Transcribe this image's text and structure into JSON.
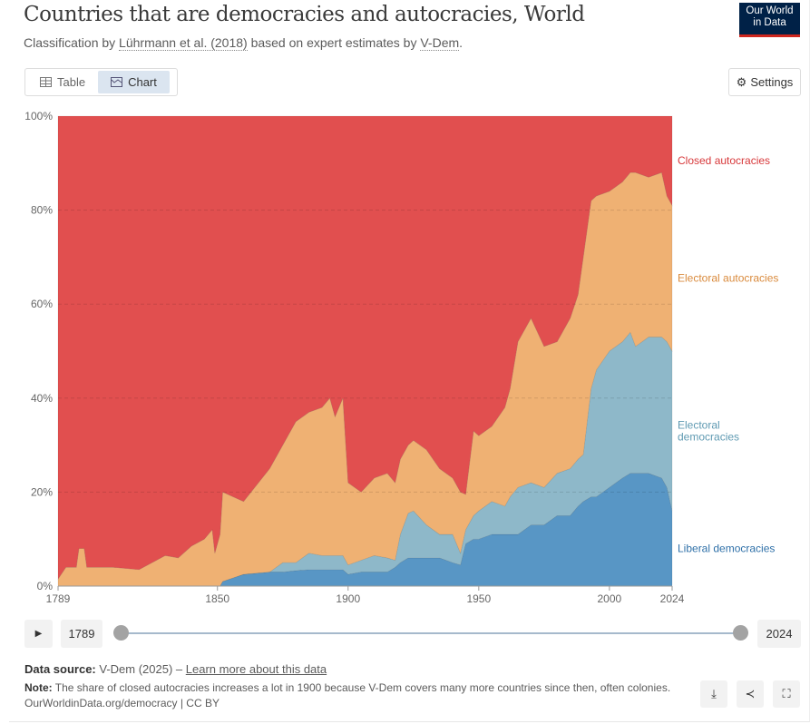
{
  "header": {
    "title": "Countries that are democracies and autocracies, World",
    "subtitle_pre": "Classification by ",
    "subtitle_link1": "Lührmann et al. (2018)",
    "subtitle_mid": " based on expert estimates by ",
    "subtitle_link2": "V-Dem",
    "subtitle_post": ".",
    "logo_line1": "Our World",
    "logo_line2": "in Data"
  },
  "tabs": {
    "table": "Table",
    "chart": "Chart"
  },
  "settings_label": "Settings",
  "timeline": {
    "start": "1789",
    "end": "2024"
  },
  "footer": {
    "source_label": "Data source:",
    "source_text": " V-Dem (2025) – ",
    "source_link": "Learn more about this data",
    "note_label": "Note:",
    "note_text": " The share of closed autocracies increases a lot in 1900 because V-Dem covers many more countries since then, often colonies.",
    "url": "OurWorldinData.org/democracy | CC BY"
  },
  "colors": {
    "closed": "#e14f4f",
    "electoral_autocracies": "#efb173",
    "electoral_democracies": "#8eb8c9",
    "liberal": "#5896c5"
  },
  "chart_data": {
    "type": "area",
    "stacked": true,
    "title": "Countries that are democracies and autocracies, World",
    "ylim": [
      0,
      100
    ],
    "y_ticks": [
      "0%",
      "20%",
      "40%",
      "60%",
      "80%",
      "100%"
    ],
    "x_ticks": [
      "1789",
      "1850",
      "1900",
      "1950",
      "2000",
      "2024"
    ],
    "xlim": [
      1789,
      2024
    ],
    "x": [
      1789,
      1792,
      1796,
      1797,
      1799,
      1800,
      1810,
      1820,
      1825,
      1830,
      1835,
      1840,
      1845,
      1848,
      1849,
      1851,
      1852,
      1860,
      1870,
      1875,
      1880,
      1885,
      1890,
      1893,
      1895,
      1898,
      1900,
      1905,
      1910,
      1915,
      1918,
      1920,
      1923,
      1925,
      1930,
      1935,
      1940,
      1943,
      1945,
      1948,
      1950,
      1955,
      1960,
      1962,
      1965,
      1970,
      1975,
      1980,
      1985,
      1988,
      1990,
      1993,
      1995,
      2000,
      2005,
      2008,
      2010,
      2015,
      2020,
      2022,
      2024
    ],
    "series": [
      {
        "name": "Liberal democracies",
        "label_lines": [
          "Liberal democracies"
        ],
        "color": "#5896c5",
        "label_color": "#2f70a8",
        "values": [
          0,
          0,
          0,
          0,
          0,
          0,
          0,
          0,
          0,
          0,
          0,
          0,
          0,
          0,
          0,
          0,
          1,
          2.5,
          3,
          3,
          3.3,
          3.5,
          3.5,
          3.5,
          3.5,
          3.5,
          2.5,
          3,
          3,
          3,
          4,
          5,
          6,
          6,
          6,
          6,
          5,
          4.5,
          9,
          10,
          10,
          11,
          11,
          11,
          11,
          13,
          13,
          15,
          15,
          17,
          18,
          19,
          19,
          21,
          23,
          24,
          24,
          24,
          23,
          21,
          16
        ]
      },
      {
        "name": "Electoral democracies",
        "label_lines": [
          "Electoral",
          "democracies"
        ],
        "color": "#8eb8c9",
        "label_color": "#5f9ab2",
        "values": [
          0,
          0,
          0,
          0,
          0,
          0,
          0,
          0,
          0,
          0,
          0,
          0,
          0,
          0,
          0,
          0,
          0,
          0,
          0,
          2,
          1.7,
          3.5,
          3,
          3,
          3,
          3,
          2,
          2.5,
          3.5,
          3,
          1.5,
          6,
          9.5,
          10,
          7,
          5,
          6,
          2.5,
          3,
          5,
          6,
          7,
          6,
          8,
          10,
          9,
          8,
          9,
          10,
          10,
          10,
          23,
          27,
          29,
          29,
          30,
          27,
          29,
          30,
          31,
          34
        ]
      },
      {
        "name": "Electoral autocracies",
        "label_lines": [
          "Electoral autocracies"
        ],
        "color": "#efb173",
        "label_color": "#d98a3c",
        "values": [
          1.5,
          4,
          4,
          8,
          8,
          4,
          4,
          3.5,
          5,
          6.5,
          6,
          8.5,
          10,
          12,
          7,
          11,
          19,
          15.5,
          22,
          25,
          30,
          30,
          31.5,
          33.5,
          29.5,
          33.5,
          17.5,
          14.5,
          16.5,
          18,
          16.5,
          16,
          14.5,
          15,
          16,
          14,
          12,
          13,
          7.5,
          18,
          16,
          16,
          21,
          23,
          31,
          35,
          30,
          28,
          32,
          35,
          42,
          40,
          37,
          34,
          34,
          34,
          37,
          34,
          35,
          31,
          31
        ]
      },
      {
        "name": "Closed autocracies",
        "label_lines": [
          "Closed autocracies"
        ],
        "color": "#e14f4f",
        "label_color": "#d7383a",
        "values": [
          98.5,
          96,
          96,
          92,
          92,
          96,
          96,
          96.5,
          95,
          93.5,
          94,
          91.5,
          90,
          88,
          93,
          89,
          80,
          82,
          75,
          70,
          65,
          63,
          62,
          60,
          64,
          60,
          78,
          80,
          77,
          76,
          78,
          73,
          70,
          69,
          71,
          75,
          77,
          80,
          80.5,
          67,
          68,
          66,
          62,
          58,
          48,
          43,
          49,
          48,
          43,
          38,
          30,
          18,
          17,
          16,
          14,
          12,
          12,
          13,
          12,
          17,
          19
        ]
      }
    ]
  }
}
